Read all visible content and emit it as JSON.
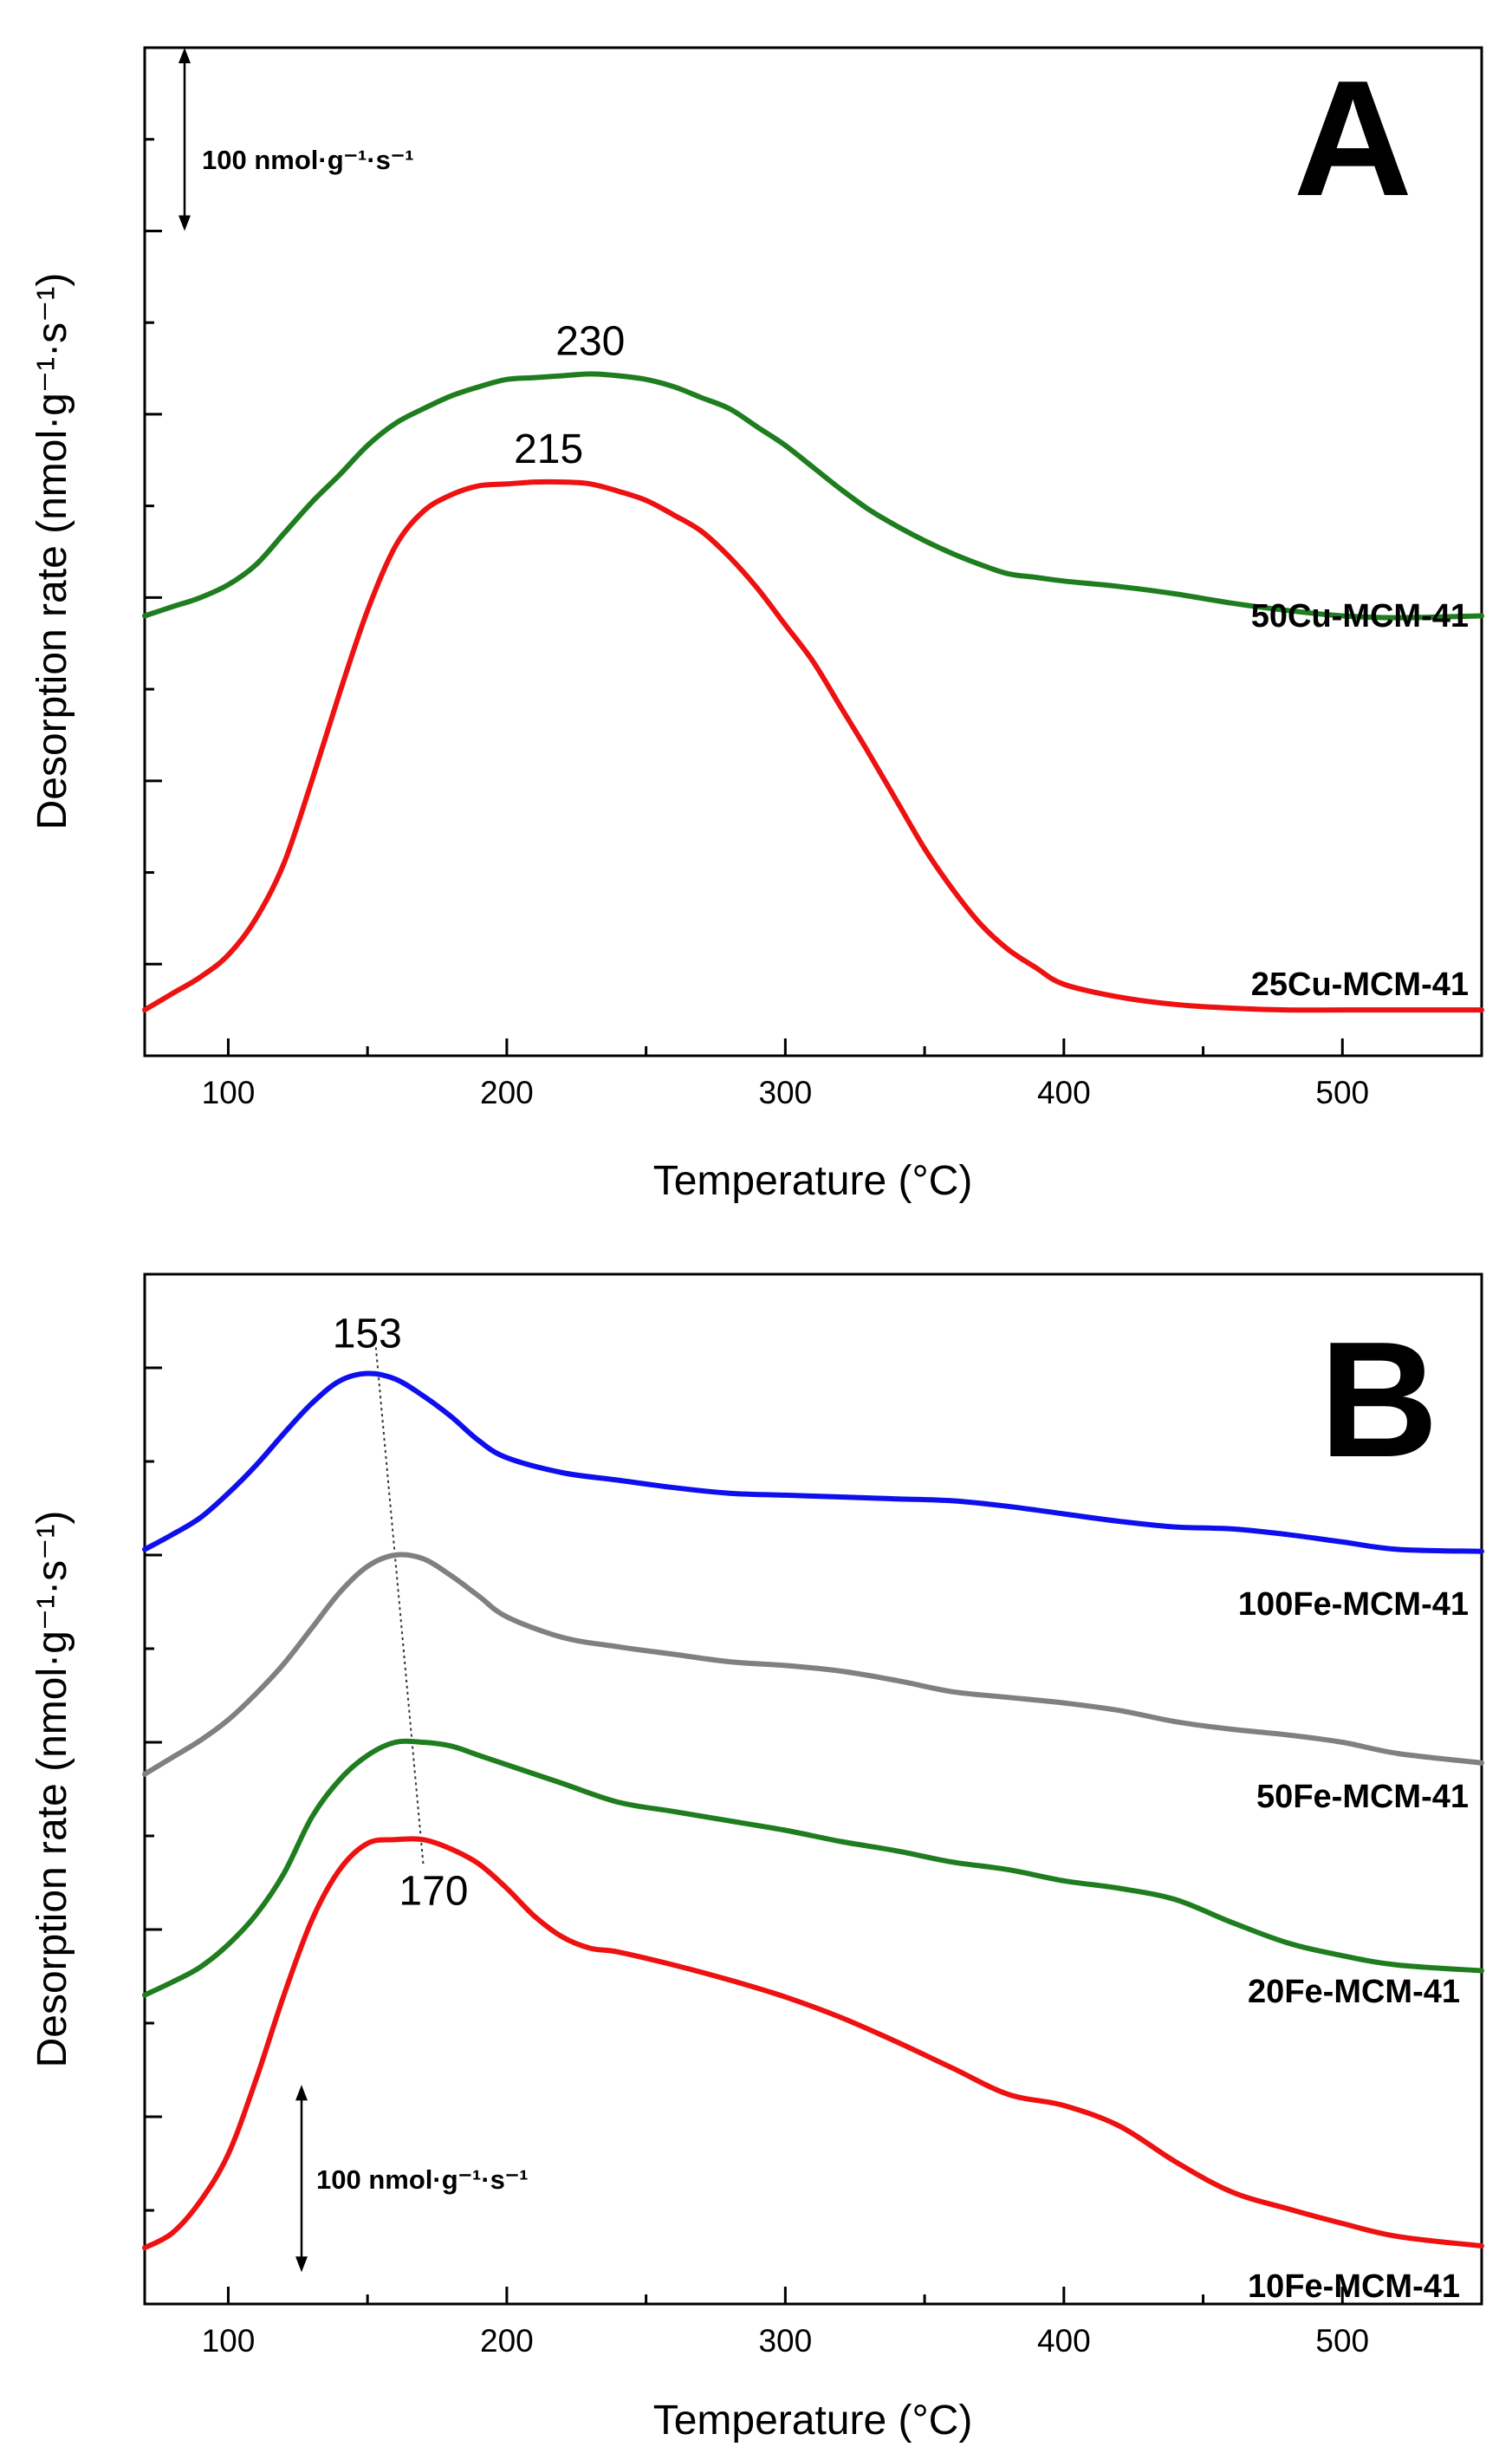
{
  "chart_data": [
    {
      "type": "line",
      "panel_label": "A",
      "xlabel": "Temperature (°C)",
      "ylabel": "Desorption rate (nmol·g⁻¹·s⁻¹)",
      "xlim": [
        70,
        550
      ],
      "ylim": [
        -50,
        500
      ],
      "x_ticks": [
        100,
        200,
        300,
        400,
        500
      ],
      "y_tick_values": [
        0,
        100,
        200,
        300,
        400,
        500
      ],
      "y_tick_labels_shown": false,
      "scale_bar": {
        "label": "100 nmol·g⁻¹·s⁻¹",
        "value": 100,
        "from": 400,
        "to": 500
      },
      "series": [
        {
          "name": "50Cu-MCM-41",
          "color": "#1e7d1e",
          "peak": {
            "label": "230",
            "x": 230,
            "y": 322
          },
          "x": [
            70,
            80,
            90,
            100,
            110,
            120,
            130,
            140,
            150,
            160,
            170,
            180,
            190,
            200,
            210,
            220,
            230,
            240,
            250,
            260,
            270,
            280,
            290,
            300,
            310,
            320,
            330,
            340,
            350,
            360,
            370,
            380,
            390,
            400,
            420,
            440,
            460,
            480,
            500,
            520,
            550
          ],
          "y": [
            190,
            195,
            200,
            207,
            218,
            235,
            252,
            267,
            283,
            295,
            303,
            310,
            315,
            319,
            320,
            321,
            322,
            321,
            319,
            315,
            309,
            303,
            293,
            283,
            271,
            259,
            248,
            239,
            231,
            224,
            218,
            213,
            211,
            209,
            206,
            202,
            197,
            193,
            190,
            189,
            190
          ]
        },
        {
          "name": "25Cu-MCM-41",
          "color": "#ee1111",
          "peak": {
            "label": "215",
            "x": 215,
            "y": 263
          },
          "x": [
            70,
            80,
            90,
            100,
            110,
            120,
            130,
            140,
            150,
            160,
            170,
            180,
            190,
            200,
            210,
            220,
            230,
            240,
            250,
            260,
            270,
            280,
            290,
            300,
            310,
            320,
            330,
            340,
            350,
            360,
            370,
            380,
            390,
            400,
            420,
            440,
            460,
            480,
            500,
            520,
            550
          ],
          "y": [
            -25,
            -16,
            -7,
            5,
            25,
            55,
            100,
            148,
            193,
            228,
            247,
            256,
            261,
            262,
            263,
            263,
            262,
            258,
            253,
            245,
            236,
            222,
            205,
            185,
            165,
            140,
            115,
            89,
            63,
            41,
            22,
            8,
            -2,
            -11,
            -18,
            -22,
            -24,
            -25,
            -25,
            -25,
            -25
          ]
        }
      ]
    },
    {
      "type": "line",
      "panel_label": "B",
      "xlabel": "Temperature (°C)",
      "ylabel": "Desorption rate (nmol·g⁻¹·s⁻¹)",
      "xlim": [
        70,
        550
      ],
      "ylim": [
        0,
        550
      ],
      "x_ticks": [
        100,
        200,
        300,
        400,
        500
      ],
      "y_tick_values": [
        0,
        100,
        200,
        300,
        400,
        500
      ],
      "y_tick_labels_shown": false,
      "scale_bar": {
        "label": "100 nmol·g⁻¹·s⁻¹",
        "value": 100,
        "from": 17,
        "to": 117
      },
      "peak_shift_line": {
        "from": {
          "x": 153,
          "y": 497
        },
        "to": {
          "x": 170,
          "y": 248
        }
      },
      "series": [
        {
          "name": "100Fe-MCM-41",
          "color": "#0f0fee",
          "peak": {
            "label": "153",
            "x": 153,
            "y": 497
          },
          "x": [
            70,
            80,
            90,
            100,
            110,
            120,
            130,
            140,
            150,
            160,
            170,
            180,
            190,
            200,
            220,
            240,
            260,
            280,
            300,
            320,
            340,
            360,
            380,
            400,
            420,
            440,
            460,
            480,
            500,
            520,
            550
          ],
          "y": [
            403,
            411,
            420,
            433,
            448,
            465,
            481,
            493,
            497,
            494,
            485,
            474,
            461,
            452,
            444,
            440,
            436,
            433,
            432,
            431,
            430,
            429,
            426,
            422,
            418,
            415,
            414,
            411,
            407,
            403,
            402
          ]
        },
        {
          "name": "50Fe-MCM-41",
          "color": "#808080",
          "x": [
            70,
            80,
            90,
            100,
            110,
            120,
            130,
            140,
            150,
            160,
            170,
            180,
            190,
            200,
            220,
            240,
            260,
            280,
            300,
            320,
            340,
            360,
            380,
            400,
            420,
            440,
            460,
            480,
            500,
            520,
            550
          ],
          "y": [
            283,
            292,
            301,
            312,
            326,
            342,
            361,
            380,
            394,
            400,
            398,
            389,
            378,
            367,
            356,
            351,
            347,
            343,
            341,
            338,
            333,
            327,
            324,
            321,
            317,
            311,
            307,
            304,
            300,
            294,
            289
          ]
        },
        {
          "name": "20Fe-MCM-41",
          "color": "#1e7d1e",
          "x": [
            70,
            80,
            90,
            100,
            110,
            120,
            130,
            140,
            150,
            160,
            170,
            180,
            190,
            200,
            220,
            240,
            260,
            280,
            300,
            320,
            340,
            360,
            380,
            400,
            420,
            440,
            460,
            480,
            500,
            520,
            550
          ],
          "y": [
            165,
            172,
            180,
            192,
            208,
            230,
            260,
            280,
            293,
            300,
            300,
            298,
            293,
            288,
            278,
            268,
            263,
            258,
            253,
            247,
            242,
            236,
            232,
            226,
            222,
            216,
            204,
            193,
            186,
            181,
            178
          ]
        },
        {
          "name": "10Fe-MCM-41",
          "color": "#ee1111",
          "peak": {
            "label": "170",
            "x": 170,
            "y": 248
          },
          "x": [
            70,
            80,
            90,
            100,
            110,
            120,
            130,
            140,
            150,
            160,
            170,
            180,
            190,
            200,
            210,
            220,
            230,
            240,
            260,
            280,
            300,
            320,
            340,
            360,
            380,
            400,
            420,
            440,
            460,
            480,
            500,
            520,
            550
          ],
          "y": [
            30,
            38,
            55,
            80,
            120,
            165,
            205,
            232,
            246,
            248,
            248,
            243,
            235,
            222,
            207,
            196,
            190,
            188,
            181,
            173,
            164,
            153,
            140,
            126,
            112,
            106,
            95,
            76,
            60,
            51,
            43,
            36,
            31
          ]
        }
      ]
    }
  ]
}
